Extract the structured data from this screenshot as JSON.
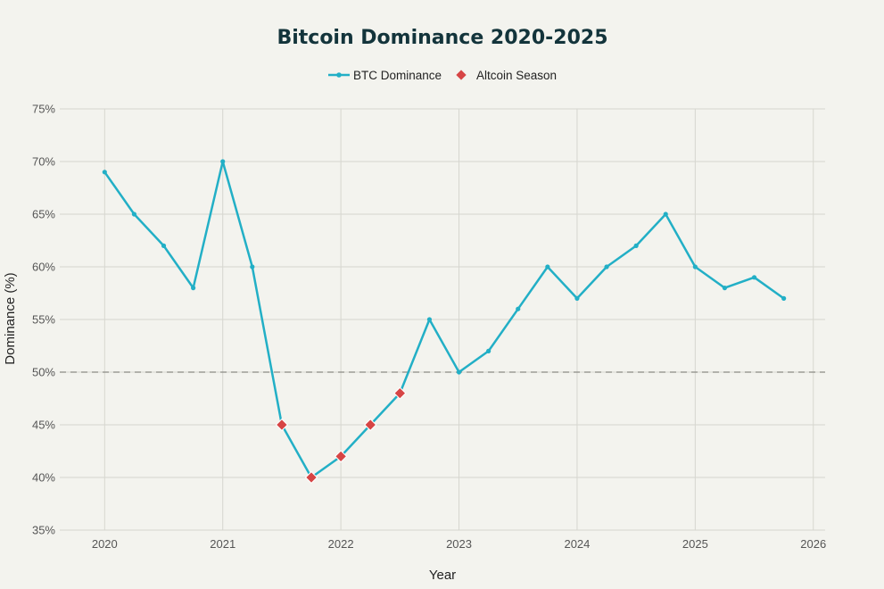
{
  "chart_data": {
    "type": "line",
    "title": "Bitcoin Dominance 2020-2025",
    "xlabel": "Year",
    "ylabel": "Dominance (%)",
    "xlim": [
      2019.62,
      2026.1
    ],
    "ylim": [
      35,
      75
    ],
    "x_ticks": [
      2020,
      2021,
      2022,
      2023,
      2024,
      2025,
      2026
    ],
    "y_ticks": [
      35,
      40,
      45,
      50,
      55,
      60,
      65,
      70,
      75
    ],
    "y_tick_suffix": "%",
    "grid": true,
    "legend": "top-center",
    "reference_line": {
      "y": 50,
      "style": "dashed"
    },
    "series": [
      {
        "name": "BTC Dominance",
        "color": "#22afc6",
        "marker": "circle",
        "x": [
          2020.0,
          2020.25,
          2020.5,
          2020.75,
          2021.0,
          2021.25,
          2021.5,
          2021.75,
          2022.0,
          2022.25,
          2022.5,
          2022.75,
          2023.0,
          2023.25,
          2023.5,
          2023.75,
          2024.0,
          2024.25,
          2024.5,
          2024.75,
          2025.0,
          2025.25,
          2025.5,
          2025.75
        ],
        "y": [
          69,
          65,
          62,
          58,
          70,
          60,
          45,
          40,
          42,
          45,
          48,
          55,
          50,
          52,
          56,
          60,
          57,
          60,
          62,
          65,
          60,
          58,
          59,
          57
        ]
      },
      {
        "name": "Altcoin Season",
        "color": "#d64545",
        "marker": "diamond",
        "x": [
          2021.5,
          2021.75,
          2022.0,
          2022.25,
          2022.5
        ],
        "y": [
          45,
          40,
          42,
          45,
          48
        ]
      }
    ]
  }
}
